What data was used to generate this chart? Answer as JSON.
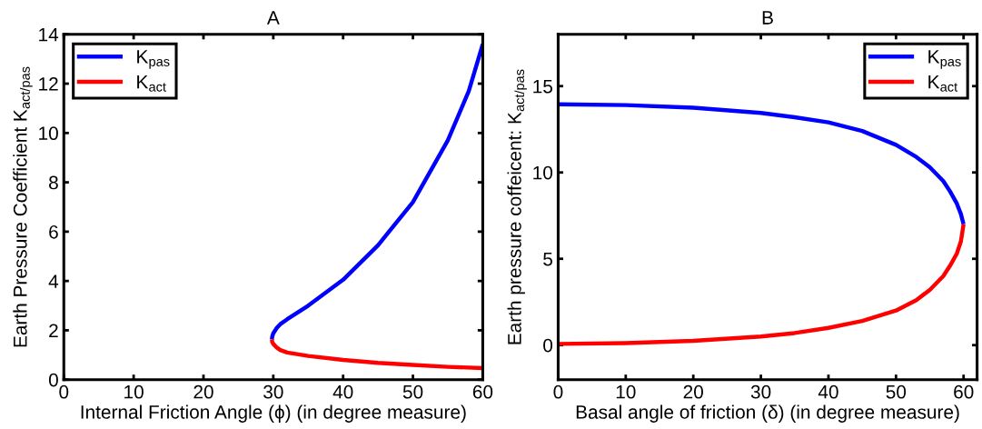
{
  "chart_data": [
    {
      "type": "line",
      "title": "A",
      "xlabel": "Internal Friction Angle (ϕ) (in degree measure)",
      "ylabel": "Earth Pressure Coefficient K$_{act/pas}$",
      "xlim": [
        0,
        60
      ],
      "xticks": [
        0,
        10,
        20,
        30,
        40,
        50,
        60
      ],
      "ylim": [
        0,
        14
      ],
      "yticks": [
        0,
        2,
        4,
        6,
        8,
        10,
        12,
        14
      ],
      "grid": false,
      "legend": "top left",
      "marker": "none",
      "line_style": "solid",
      "series": [
        {
          "name": "K$_{pas}$",
          "color": "#0000ff",
          "x": [
            29.8,
            29.85,
            30,
            30.5,
            31,
            32,
            35,
            40,
            45,
            50,
            55,
            58,
            60
          ],
          "values": [
            1.63,
            1.75,
            1.88,
            2.1,
            2.25,
            2.45,
            3.0,
            4.05,
            5.45,
            7.2,
            9.7,
            11.7,
            13.6
          ]
        },
        {
          "name": "K$_{act}$",
          "color": "#ff0000",
          "x": [
            29.8,
            29.85,
            30,
            30.5,
            31,
            32,
            35,
            40,
            45,
            50,
            55,
            60
          ],
          "values": [
            1.63,
            1.52,
            1.45,
            1.3,
            1.2,
            1.1,
            0.96,
            0.8,
            0.68,
            0.6,
            0.52,
            0.47
          ]
        }
      ]
    },
    {
      "type": "line",
      "title": "B",
      "xlabel": "Basal angle of friction (δ) (in degree measure)",
      "ylabel": "Earth pressure coffeicent: K$_{act/pas}$",
      "xlim": [
        0,
        62
      ],
      "xticks": [
        0,
        10,
        20,
        30,
        40,
        50,
        60
      ],
      "ylim": [
        -2,
        18
      ],
      "yticks": [
        0,
        5,
        10,
        15
      ],
      "grid": false,
      "legend": "top right",
      "marker": "none",
      "line_style": "solid",
      "series": [
        {
          "name": "K$_{pas}$",
          "color": "#0000ff",
          "x": [
            0,
            10,
            20,
            30,
            35,
            40,
            45,
            50,
            53,
            55,
            57,
            58,
            59,
            59.6,
            60
          ],
          "values": [
            13.95,
            13.9,
            13.75,
            13.45,
            13.2,
            12.9,
            12.4,
            11.6,
            10.9,
            10.3,
            9.5,
            8.9,
            8.2,
            7.6,
            7.0
          ]
        },
        {
          "name": "K$_{act}$",
          "color": "#ff0000",
          "x": [
            0,
            10,
            20,
            30,
            35,
            40,
            45,
            50,
            53,
            55,
            57,
            58,
            59,
            59.6,
            60
          ],
          "values": [
            0.07,
            0.12,
            0.25,
            0.5,
            0.7,
            1.0,
            1.4,
            2.0,
            2.6,
            3.2,
            4.0,
            4.6,
            5.3,
            6.0,
            7.0
          ]
        }
      ]
    }
  ]
}
